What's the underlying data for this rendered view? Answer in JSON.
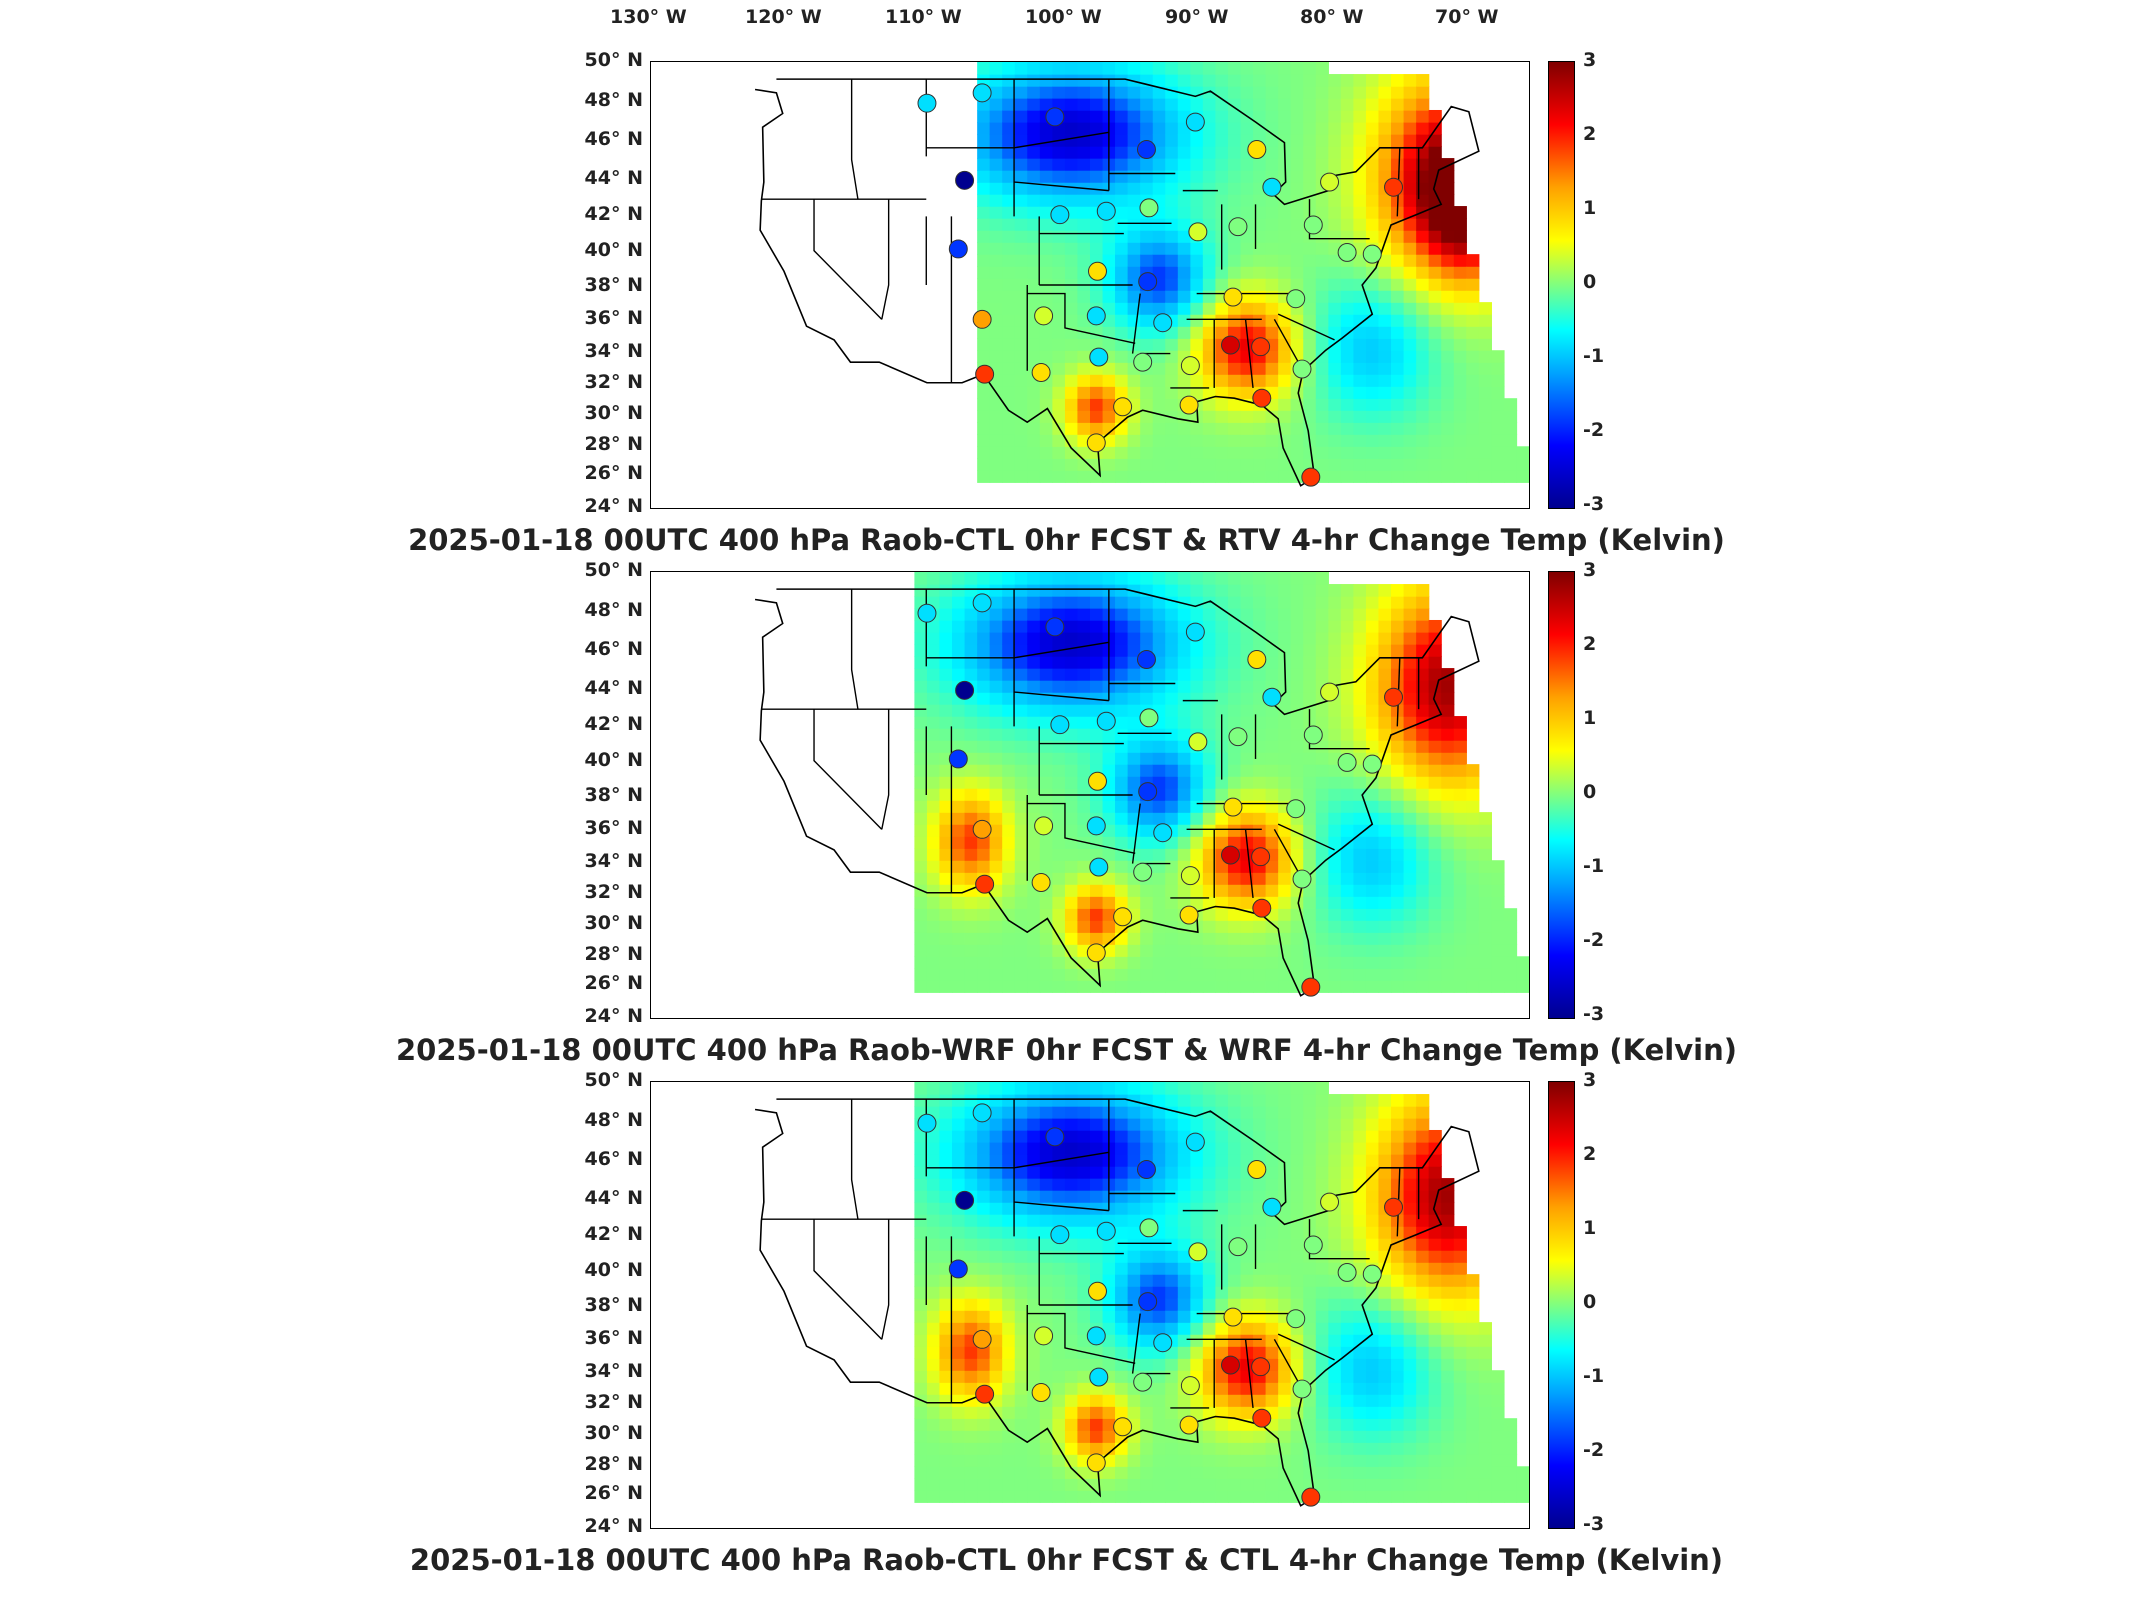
{
  "longitude_labels": [
    "130° W",
    "120° W",
    "110° W",
    "100° W",
    "90° W",
    "80° W",
    "70° W"
  ],
  "latitude_labels": [
    "50° N",
    "48° N",
    "46° N",
    "44° N",
    "42° N",
    "40° N",
    "38° N",
    "36° N",
    "34° N",
    "32° N",
    "30° N",
    "28° N",
    "26° N",
    "24° N"
  ],
  "colorbar": {
    "ticks": [
      "3",
      "2",
      "1",
      "0",
      "-1",
      "-2",
      "-3"
    ],
    "range": [
      -3,
      3
    ],
    "colors": [
      "#00008f",
      "#0000ff",
      "#00a0ff",
      "#00ffff",
      "#7fff80",
      "#ffff00",
      "#ffa000",
      "#ff0000",
      "#800000"
    ]
  },
  "panels": [
    {
      "title": "2025-01-18 00UTC 400 hPa Raob-CTL 0hr FCST & RTV 4-hr Change Temp (Kelvin)"
    },
    {
      "title": "2025-01-18 00UTC 400 hPa Raob-WRF 0hr FCST & WRF 4-hr Change Temp (Kelvin)"
    },
    {
      "title": "2025-01-18 00UTC 400 hPa Raob-CTL 0hr FCST & CTL 4-hr Change Temp (Kelvin)"
    }
  ],
  "map": {
    "lon_range": [
      -133,
      -63
    ],
    "lat_range": [
      24,
      50
    ],
    "stations": [
      {
        "lon": -111,
        "lat": 47.6,
        "v": [
          -1,
          -1,
          -1
        ]
      },
      {
        "lon": -106.6,
        "lat": 48.2,
        "v": [
          -1,
          -1,
          -1
        ]
      },
      {
        "lon": -108,
        "lat": 43.1,
        "v": [
          -3,
          -3,
          -3
        ]
      },
      {
        "lon": -108.5,
        "lat": 39.1,
        "v": [
          -2,
          -2,
          -2
        ]
      },
      {
        "lon": -100.8,
        "lat": 46.8,
        "v": [
          -2,
          -2,
          -2
        ]
      },
      {
        "lon": -93.5,
        "lat": 44.9,
        "v": [
          -2,
          -2,
          -2
        ]
      },
      {
        "lon": -89.6,
        "lat": 46.5,
        "v": [
          -1,
          -1,
          -1
        ]
      },
      {
        "lon": -100.4,
        "lat": 41.1,
        "v": [
          -1,
          -1,
          -1
        ]
      },
      {
        "lon": -96.7,
        "lat": 41.3,
        "v": [
          -1,
          -1,
          -1
        ]
      },
      {
        "lon": -93.3,
        "lat": 41.5,
        "v": [
          0,
          0,
          0
        ]
      },
      {
        "lon": -89.4,
        "lat": 40.1,
        "v": [
          0.5,
          0.5,
          0.5
        ]
      },
      {
        "lon": -86.2,
        "lat": 40.4,
        "v": [
          0,
          0,
          0
        ]
      },
      {
        "lon": -84.7,
        "lat": 44.9,
        "v": [
          1,
          1,
          1
        ]
      },
      {
        "lon": -83.5,
        "lat": 42.7,
        "v": [
          -1,
          -1,
          -1
        ]
      },
      {
        "lon": -78.9,
        "lat": 43.0,
        "v": [
          0.5,
          0.5,
          0.5
        ]
      },
      {
        "lon": -73.8,
        "lat": 42.7,
        "v": [
          2,
          2,
          2
        ]
      },
      {
        "lon": -80.2,
        "lat": 40.5,
        "v": [
          0,
          0,
          0
        ]
      },
      {
        "lon": -77.5,
        "lat": 38.9,
        "v": [
          0,
          0,
          0
        ]
      },
      {
        "lon": -75.5,
        "lat": 38.8,
        "v": [
          0,
          0,
          0
        ]
      },
      {
        "lon": -97.4,
        "lat": 37.8,
        "v": [
          1,
          1,
          1
        ]
      },
      {
        "lon": -93.4,
        "lat": 37.2,
        "v": [
          -2,
          -2,
          -2
        ]
      },
      {
        "lon": -86.6,
        "lat": 36.3,
        "v": [
          1,
          1,
          1
        ]
      },
      {
        "lon": -81.6,
        "lat": 36.2,
        "v": [
          0,
          0,
          0
        ]
      },
      {
        "lon": -97.5,
        "lat": 35.2,
        "v": [
          -1,
          -1,
          -1
        ]
      },
      {
        "lon": -101.7,
        "lat": 35.2,
        "v": [
          0.5,
          0.5,
          0.5
        ]
      },
      {
        "lon": -106.6,
        "lat": 35.0,
        "v": [
          1.5,
          1.5,
          1.5
        ]
      },
      {
        "lon": -92.2,
        "lat": 34.8,
        "v": [
          -1,
          -1,
          -1
        ]
      },
      {
        "lon": -90.0,
        "lat": 32.3,
        "v": [
          0.5,
          0.5,
          0.5
        ]
      },
      {
        "lon": -86.8,
        "lat": 33.5,
        "v": [
          2.5,
          2.5,
          2.5
        ]
      },
      {
        "lon": -84.4,
        "lat": 33.4,
        "v": [
          2,
          2,
          2
        ]
      },
      {
        "lon": -81.1,
        "lat": 32.1,
        "v": [
          0,
          0,
          0
        ]
      },
      {
        "lon": -106.4,
        "lat": 31.8,
        "v": [
          2,
          2,
          2
        ]
      },
      {
        "lon": -101.9,
        "lat": 31.9,
        "v": [
          1,
          1,
          1
        ]
      },
      {
        "lon": -97.3,
        "lat": 32.8,
        "v": [
          -1,
          -1,
          -1
        ]
      },
      {
        "lon": -93.8,
        "lat": 32.5,
        "v": [
          0,
          0,
          0
        ]
      },
      {
        "lon": -97.5,
        "lat": 27.8,
        "v": [
          1,
          1,
          1
        ]
      },
      {
        "lon": -95.4,
        "lat": 29.9,
        "v": [
          1,
          1,
          1
        ]
      },
      {
        "lon": -90.1,
        "lat": 30.0,
        "v": [
          1,
          1,
          1
        ]
      },
      {
        "lon": -84.3,
        "lat": 30.4,
        "v": [
          2,
          2,
          2
        ]
      },
      {
        "lon": -80.4,
        "lat": 25.8,
        "v": [
          2,
          2,
          2
        ]
      }
    ]
  }
}
